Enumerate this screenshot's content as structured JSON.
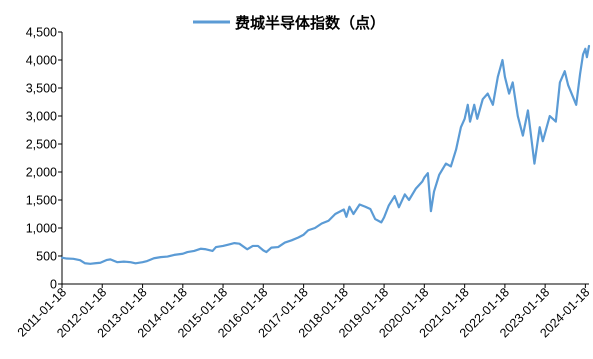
{
  "chart_data": {
    "type": "line",
    "series": [
      {
        "name": "费城半导体指数（点）",
        "color": "#5b9bd5",
        "points": [
          [
            "2011-01-18",
            470
          ],
          [
            "2011-03-01",
            455
          ],
          [
            "2011-05-01",
            450
          ],
          [
            "2011-07-01",
            425
          ],
          [
            "2011-08-15",
            370
          ],
          [
            "2011-10-01",
            360
          ],
          [
            "2011-11-15",
            370
          ],
          [
            "2012-01-01",
            380
          ],
          [
            "2012-03-01",
            430
          ],
          [
            "2012-04-01",
            440
          ],
          [
            "2012-06-01",
            390
          ],
          [
            "2012-08-01",
            400
          ],
          [
            "2012-10-01",
            390
          ],
          [
            "2012-11-15",
            370
          ],
          [
            "2013-01-18",
            390
          ],
          [
            "2013-03-01",
            410
          ],
          [
            "2013-05-01",
            460
          ],
          [
            "2013-07-01",
            480
          ],
          [
            "2013-09-01",
            490
          ],
          [
            "2013-11-01",
            520
          ],
          [
            "2014-01-18",
            540
          ],
          [
            "2014-03-01",
            570
          ],
          [
            "2014-05-01",
            590
          ],
          [
            "2014-07-01",
            630
          ],
          [
            "2014-08-15",
            620
          ],
          [
            "2014-10-15",
            590
          ],
          [
            "2014-11-15",
            660
          ],
          [
            "2015-01-18",
            680
          ],
          [
            "2015-03-01",
            700
          ],
          [
            "2015-05-01",
            730
          ],
          [
            "2015-06-15",
            720
          ],
          [
            "2015-08-25",
            620
          ],
          [
            "2015-10-15",
            680
          ],
          [
            "2015-12-01",
            680
          ],
          [
            "2016-01-18",
            600
          ],
          [
            "2016-02-15",
            570
          ],
          [
            "2016-04-01",
            650
          ],
          [
            "2016-06-01",
            660
          ],
          [
            "2016-08-01",
            740
          ],
          [
            "2016-10-01",
            780
          ],
          [
            "2016-12-01",
            830
          ],
          [
            "2017-01-18",
            880
          ],
          [
            "2017-03-01",
            960
          ],
          [
            "2017-05-01",
            1000
          ],
          [
            "2017-07-01",
            1080
          ],
          [
            "2017-09-01",
            1130
          ],
          [
            "2017-11-01",
            1250
          ],
          [
            "2018-01-18",
            1330
          ],
          [
            "2018-02-10",
            1200
          ],
          [
            "2018-03-10",
            1380
          ],
          [
            "2018-04-15",
            1250
          ],
          [
            "2018-06-10",
            1420
          ],
          [
            "2018-08-01",
            1380
          ],
          [
            "2018-09-15",
            1340
          ],
          [
            "2018-10-29",
            1160
          ],
          [
            "2018-12-24",
            1100
          ],
          [
            "2019-01-18",
            1190
          ],
          [
            "2019-03-01",
            1400
          ],
          [
            "2019-04-24",
            1570
          ],
          [
            "2019-06-01",
            1370
          ],
          [
            "2019-07-25",
            1600
          ],
          [
            "2019-09-01",
            1500
          ],
          [
            "2019-11-01",
            1700
          ],
          [
            "2019-12-31",
            1830
          ],
          [
            "2020-01-18",
            1900
          ],
          [
            "2020-02-19",
            1980
          ],
          [
            "2020-03-18",
            1300
          ],
          [
            "2020-04-15",
            1650
          ],
          [
            "2020-06-01",
            1950
          ],
          [
            "2020-08-01",
            2150
          ],
          [
            "2020-09-15",
            2100
          ],
          [
            "2020-11-01",
            2400
          ],
          [
            "2020-12-15",
            2800
          ],
          [
            "2021-01-18",
            2950
          ],
          [
            "2021-02-15",
            3200
          ],
          [
            "2021-03-08",
            2900
          ],
          [
            "2021-04-15",
            3200
          ],
          [
            "2021-05-12",
            2950
          ],
          [
            "2021-07-01",
            3300
          ],
          [
            "2021-08-15",
            3400
          ],
          [
            "2021-10-01",
            3200
          ],
          [
            "2021-11-15",
            3700
          ],
          [
            "2021-12-27",
            4000
          ],
          [
            "2022-01-18",
            3700
          ],
          [
            "2022-02-25",
            3400
          ],
          [
            "2022-03-30",
            3600
          ],
          [
            "2022-05-15",
            3000
          ],
          [
            "2022-06-30",
            2650
          ],
          [
            "2022-08-15",
            3100
          ],
          [
            "2022-10-13",
            2150
          ],
          [
            "2022-11-30",
            2800
          ],
          [
            "2022-12-28",
            2550
          ],
          [
            "2023-01-18",
            2700
          ],
          [
            "2023-03-01",
            3000
          ],
          [
            "2023-04-25",
            2900
          ],
          [
            "2023-06-01",
            3600
          ],
          [
            "2023-07-15",
            3800
          ],
          [
            "2023-08-15",
            3550
          ],
          [
            "2023-10-27",
            3200
          ],
          [
            "2023-12-01",
            3750
          ],
          [
            "2023-12-28",
            4100
          ],
          [
            "2024-01-18",
            4200
          ],
          [
            "2024-02-01",
            4050
          ],
          [
            "2024-02-20",
            4250
          ]
        ]
      }
    ],
    "xaxis": {
      "ticks": [
        "2011-01-18",
        "2012-01-18",
        "2013-01-18",
        "2014-01-18",
        "2015-01-18",
        "2016-01-18",
        "2017-01-18",
        "2018-01-18",
        "2019-01-18",
        "2020-01-18",
        "2021-01-18",
        "2022-01-18",
        "2023-01-18",
        "2024-01-18"
      ],
      "range": [
        "2011-01-18",
        "2024-02-20"
      ]
    },
    "yaxis": {
      "ticks": [
        "0",
        "500",
        "1,000",
        "1,500",
        "2,000",
        "2,500",
        "3,000",
        "3,500",
        "4,000",
        "4,500"
      ],
      "range": [
        0,
        4500
      ]
    },
    "grid": false,
    "legend": "top-center"
  }
}
